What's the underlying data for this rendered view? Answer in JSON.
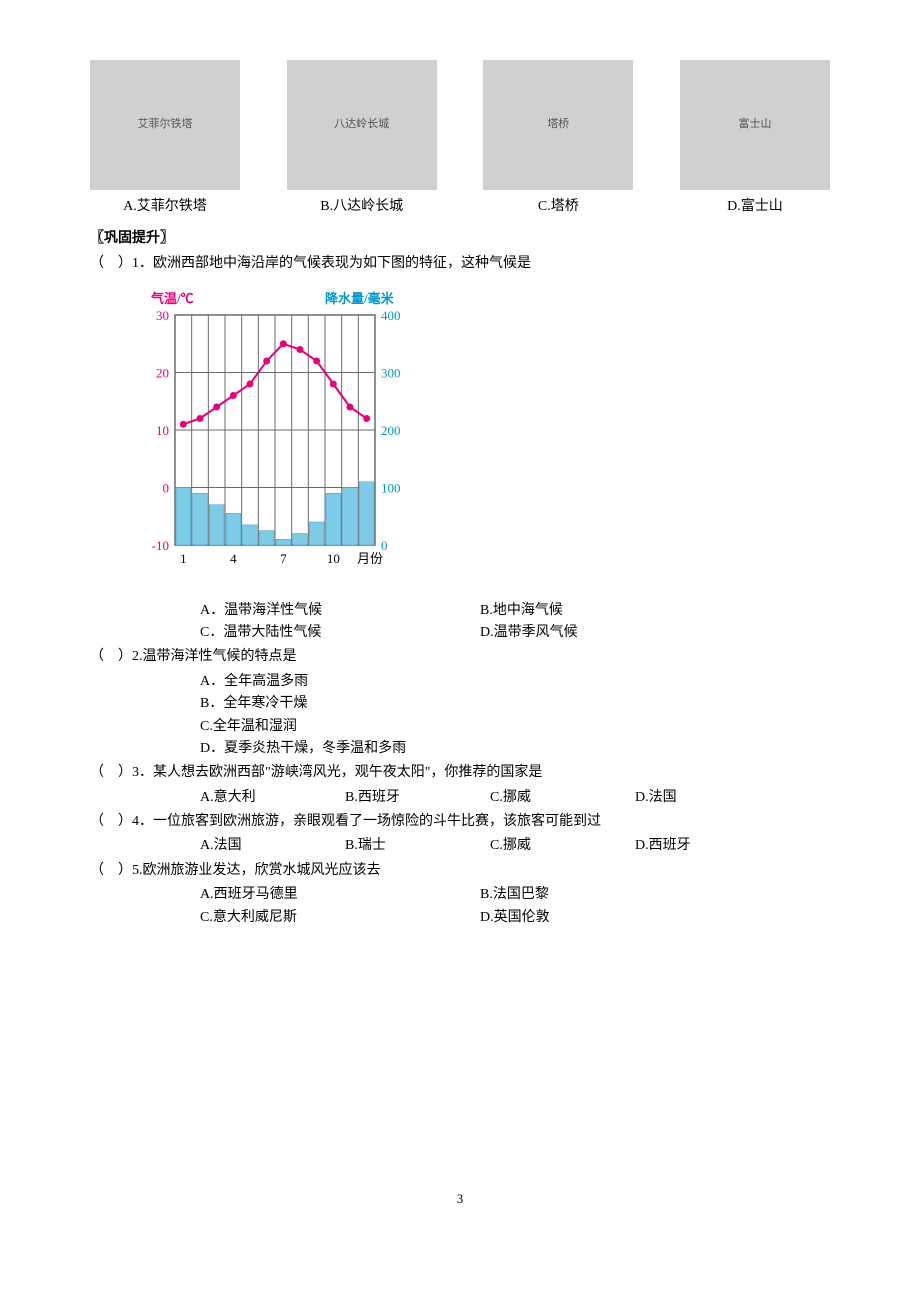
{
  "images": {
    "items": [
      {
        "caption": "A.艾菲尔铁塔",
        "alt": "艾菲尔铁塔"
      },
      {
        "caption": "B.八达岭长城",
        "alt": "八达岭长城"
      },
      {
        "caption": "C.塔桥",
        "alt": "塔桥"
      },
      {
        "caption": "D.富士山",
        "alt": "富士山"
      }
    ]
  },
  "section_title": "〖巩固提升〗",
  "q1": {
    "stem": "（　）1．欧洲西部地中海沿岸的气候表现为如下图的特征，这种气候是",
    "A": "A．温带海洋性气候",
    "B": "B.地中海气候",
    "C": "C．温带大陆性气候",
    "D": "D.温带季风气候"
  },
  "chart": {
    "temp_label": "气温/℃",
    "precip_label": "降水量/毫米",
    "x_label": "月份",
    "x_ticks": [
      "1",
      "4",
      "7",
      "10"
    ],
    "y_left": {
      "ticks": [
        -10,
        0,
        10,
        20,
        30
      ],
      "color": "#e6007e"
    },
    "y_right": {
      "ticks": [
        0,
        100,
        200,
        300,
        400
      ],
      "color": "#0099cc"
    },
    "temp_values": [
      11,
      12,
      14,
      16,
      18,
      22,
      25,
      24,
      22,
      18,
      14,
      12
    ],
    "precip_values": [
      100,
      90,
      70,
      55,
      35,
      25,
      10,
      20,
      40,
      90,
      100,
      110
    ],
    "grid_color": "#6a6a6a",
    "bar_color": "#7ecbe8",
    "line_color": "#e6007e",
    "bg": "#ffffff"
  },
  "q2": {
    "stem": "（　）2.温带海洋性气候的特点是",
    "A": "A．全年高温多雨",
    "B": "B．全年寒冷干燥",
    "C": "C.全年温和湿润",
    "D": "D．夏季炎热干燥，冬季温和多雨"
  },
  "q3": {
    "stem": "（　）3．某人想去欧洲西部\"游峡湾风光，观午夜太阳\"，你推荐的国家是",
    "A": "A.意大利",
    "B": "B.西班牙",
    "C": "C.挪威",
    "D": "D.法国"
  },
  "q4": {
    "stem": "（　）4．一位旅客到欧洲旅游，亲眼观看了一场惊险的斗牛比赛，该旅客可能到过",
    "A": "A.法国",
    "B": "B.瑞士",
    "C": "C.挪威",
    "D": "D.西班牙"
  },
  "q5": {
    "stem": "（　）5.欧洲旅游业发达，欣赏水城风光应该去",
    "A": "A.西班牙马德里",
    "B": "B.法国巴黎",
    "C": "C.意大利威尼斯",
    "D": "D.英国伦敦"
  },
  "page_number": "3"
}
